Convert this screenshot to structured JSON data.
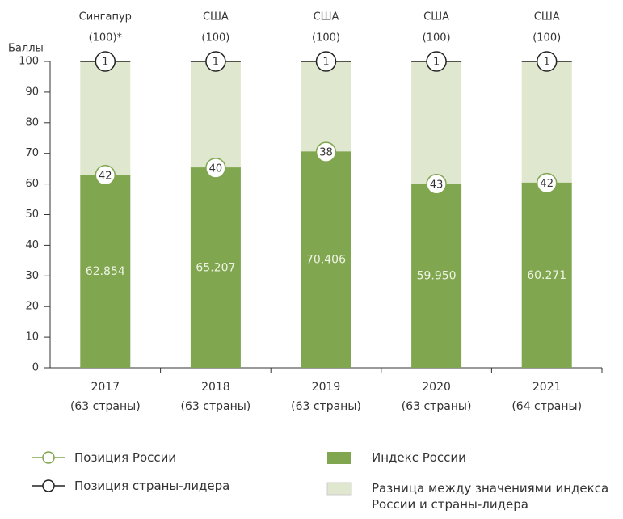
{
  "chart_data": {
    "type": "stacked-bar",
    "y_label": "Баллы",
    "categories": [
      "2017",
      "2018",
      "2019",
      "2020",
      "2021"
    ],
    "category_notes": [
      "(63 страны)",
      "(63 страны)",
      "(63 страны)",
      "(63 страны)",
      "(64 страны)"
    ],
    "leaders": [
      "Сингапур",
      "США",
      "США",
      "США",
      "США"
    ],
    "leader_scores": [
      100,
      100,
      100,
      100,
      100
    ],
    "leader_score_labels": [
      "(100)*",
      "(100)",
      "(100)",
      "(100)",
      "(100)"
    ],
    "series": [
      {
        "name": "Индекс России",
        "color": "#80a64f",
        "values": [
          62.854,
          65.207,
          70.406,
          59.95,
          60.271
        ],
        "value_labels": [
          "62.854",
          "65.207",
          "70.406",
          "59.950",
          "60.271"
        ]
      },
      {
        "name": "Разница между значениями индекса России и страны-лидера",
        "color": "#dfe7cf",
        "values": [
          37.146,
          34.793,
          29.594,
          40.05,
          39.729
        ]
      }
    ],
    "positions": [
      {
        "name": "Позиция России",
        "color": "#80a64f",
        "values": [
          42,
          40,
          38,
          43,
          42
        ]
      },
      {
        "name": "Позиция страны-лидера",
        "color": "#222222",
        "values": [
          1,
          1,
          1,
          1,
          1
        ]
      }
    ],
    "ylim": [
      0,
      100
    ],
    "yticks": [
      0,
      10,
      20,
      30,
      40,
      50,
      60,
      70,
      80,
      90,
      100
    ]
  }
}
